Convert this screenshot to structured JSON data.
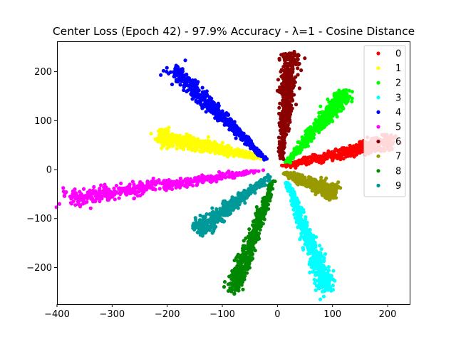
{
  "chart_data": {
    "type": "scatter",
    "title": "Center Loss (Epoch 42) - 97.9% Accuracy - λ=1 - Cosine Distance",
    "xlabel": "",
    "ylabel": "",
    "xlim": [
      -400,
      240
    ],
    "ylim": [
      -275,
      262
    ],
    "xticks": [
      -400,
      -300,
      -200,
      -100,
      0,
      100,
      200
    ],
    "yticks": [
      -200,
      -100,
      0,
      100,
      200
    ],
    "grid": false,
    "legend_position": "top-right",
    "series": [
      {
        "name": "0",
        "color": "#ff0000",
        "center": [
          5,
          5
        ],
        "end": [
          210,
          58
        ],
        "points_approx": 500
      },
      {
        "name": "1",
        "color": "#ffff00",
        "center": [
          -22,
          22
        ],
        "end": [
          -215,
          68
        ],
        "points_approx": 500
      },
      {
        "name": "2",
        "color": "#00ff00",
        "center": [
          15,
          10
        ],
        "end": [
          125,
          158
        ],
        "points_approx": 500
      },
      {
        "name": "3",
        "color": "#00ffff",
        "center": [
          15,
          -15
        ],
        "end": [
          90,
          -245
        ],
        "points_approx": 500
      },
      {
        "name": "4",
        "color": "#0000ff",
        "center": [
          -15,
          15
        ],
        "end": [
          -190,
          205
        ],
        "points_approx": 500
      },
      {
        "name": "5",
        "color": "#ff00ff",
        "center": [
          -15,
          0
        ],
        "end": [
          -380,
          -60
        ],
        "points_approx": 500
      },
      {
        "name": "6",
        "color": "#8b0000",
        "center": [
          5,
          10
        ],
        "end": [
          25,
          238
        ],
        "points_approx": 500
      },
      {
        "name": "7",
        "color": "#999900",
        "center": [
          10,
          -5
        ],
        "end": [
          105,
          -50
        ],
        "points_approx": 500
      },
      {
        "name": "8",
        "color": "#008800",
        "center": [
          -5,
          -15
        ],
        "end": [
          -80,
          -245
        ],
        "points_approx": 500
      },
      {
        "name": "9",
        "color": "#009999",
        "center": [
          -10,
          -10
        ],
        "end": [
          -145,
          -125
        ],
        "points_approx": 500
      }
    ]
  }
}
